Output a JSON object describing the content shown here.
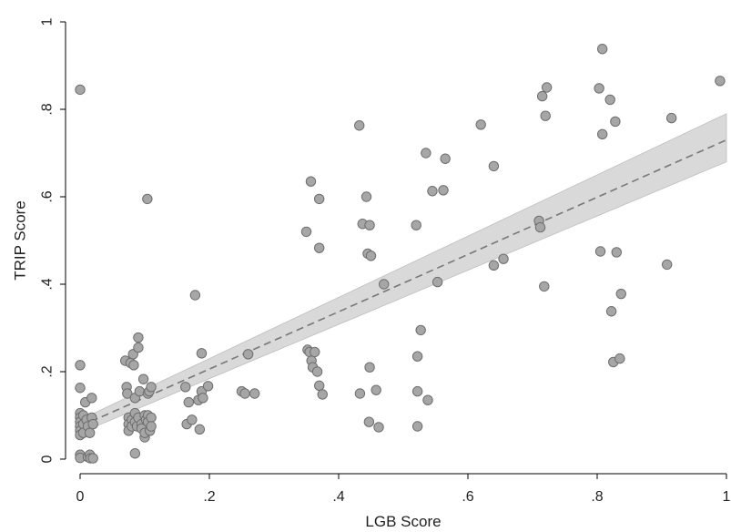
{
  "chart_data": {
    "type": "scatter",
    "title": "",
    "xlabel": "LGB Score",
    "ylabel": "TRIP Score",
    "xlim": [
      0,
      1
    ],
    "ylim": [
      0,
      1
    ],
    "xticks": [
      0,
      0.2,
      0.4,
      0.6,
      0.8,
      1
    ],
    "xtick_labels": [
      "0",
      ".2",
      ".4",
      ".6",
      ".8",
      "1"
    ],
    "yticks": [
      0,
      0.2,
      0.4,
      0.6,
      0.8,
      1
    ],
    "ytick_labels": [
      "0",
      ".2",
      ".4",
      ".6",
      ".8",
      "1"
    ],
    "grid": false,
    "legend": "none",
    "colors": {
      "point_fill": "#a6a6a6",
      "point_stroke": "#6e6e6e",
      "fit_line": "#777777",
      "ci_band": "#d9d9d9"
    },
    "fit_line": {
      "style": "dashed",
      "intercept": 0.075,
      "slope": 0.655
    },
    "confidence_band": {
      "lower_at_x0": 0.06,
      "upper_at_x0": 0.09,
      "lower_at_x1": 0.68,
      "upper_at_x1": 0.79
    },
    "points": [
      [
        0.0,
        0.845
      ],
      [
        0.0,
        0.215
      ],
      [
        0.0,
        0.163
      ],
      [
        0.0,
        0.105
      ],
      [
        0.0,
        0.095
      ],
      [
        0.0,
        0.085
      ],
      [
        0.0,
        0.075
      ],
      [
        0.0,
        0.065
      ],
      [
        0.0,
        0.055
      ],
      [
        0.0,
        0.01
      ],
      [
        0.0,
        0.003
      ],
      [
        0.005,
        0.1
      ],
      [
        0.005,
        0.08
      ],
      [
        0.005,
        0.06
      ],
      [
        0.008,
        0.13
      ],
      [
        0.01,
        0.09
      ],
      [
        0.012,
        0.075
      ],
      [
        0.012,
        0.005
      ],
      [
        0.015,
        0.06
      ],
      [
        0.015,
        0.01
      ],
      [
        0.016,
        0.002
      ],
      [
        0.018,
        0.14
      ],
      [
        0.018,
        0.095
      ],
      [
        0.02,
        0.08
      ],
      [
        0.02,
        0.002
      ],
      [
        0.07,
        0.225
      ],
      [
        0.072,
        0.165
      ],
      [
        0.073,
        0.15
      ],
      [
        0.075,
        0.095
      ],
      [
        0.075,
        0.08
      ],
      [
        0.075,
        0.065
      ],
      [
        0.078,
        0.22
      ],
      [
        0.08,
        0.09
      ],
      [
        0.08,
        0.075
      ],
      [
        0.082,
        0.24
      ],
      [
        0.083,
        0.215
      ],
      [
        0.085,
        0.14
      ],
      [
        0.085,
        0.105
      ],
      [
        0.085,
        0.085
      ],
      [
        0.085,
        0.013
      ],
      [
        0.088,
        0.075
      ],
      [
        0.09,
        0.278
      ],
      [
        0.09,
        0.255
      ],
      [
        0.09,
        0.095
      ],
      [
        0.092,
        0.155
      ],
      [
        0.095,
        0.08
      ],
      [
        0.095,
        0.07
      ],
      [
        0.098,
        0.183
      ],
      [
        0.1,
        0.1
      ],
      [
        0.1,
        0.05
      ],
      [
        0.1,
        0.06
      ],
      [
        0.102,
        0.09
      ],
      [
        0.104,
        0.595
      ],
      [
        0.105,
        0.15
      ],
      [
        0.105,
        0.1
      ],
      [
        0.105,
        0.085
      ],
      [
        0.107,
        0.155
      ],
      [
        0.108,
        0.065
      ],
      [
        0.11,
        0.165
      ],
      [
        0.11,
        0.095
      ],
      [
        0.11,
        0.075
      ],
      [
        0.163,
        0.165
      ],
      [
        0.165,
        0.08
      ],
      [
        0.168,
        0.13
      ],
      [
        0.173,
        0.09
      ],
      [
        0.178,
        0.375
      ],
      [
        0.183,
        0.135
      ],
      [
        0.185,
        0.068
      ],
      [
        0.188,
        0.242
      ],
      [
        0.188,
        0.155
      ],
      [
        0.19,
        0.14
      ],
      [
        0.198,
        0.167
      ],
      [
        0.25,
        0.155
      ],
      [
        0.255,
        0.15
      ],
      [
        0.26,
        0.24
      ],
      [
        0.27,
        0.15
      ],
      [
        0.35,
        0.52
      ],
      [
        0.352,
        0.25
      ],
      [
        0.355,
        0.245
      ],
      [
        0.357,
        0.635
      ],
      [
        0.358,
        0.225
      ],
      [
        0.36,
        0.21
      ],
      [
        0.363,
        0.245
      ],
      [
        0.367,
        0.2
      ],
      [
        0.37,
        0.483
      ],
      [
        0.37,
        0.168
      ],
      [
        0.37,
        0.595
      ],
      [
        0.375,
        0.148
      ],
      [
        0.432,
        0.763
      ],
      [
        0.433,
        0.15
      ],
      [
        0.437,
        0.538
      ],
      [
        0.443,
        0.6
      ],
      [
        0.445,
        0.47
      ],
      [
        0.447,
        0.085
      ],
      [
        0.448,
        0.535
      ],
      [
        0.448,
        0.21
      ],
      [
        0.45,
        0.465
      ],
      [
        0.458,
        0.158
      ],
      [
        0.462,
        0.073
      ],
      [
        0.47,
        0.4
      ],
      [
        0.52,
        0.535
      ],
      [
        0.522,
        0.155
      ],
      [
        0.522,
        0.235
      ],
      [
        0.522,
        0.075
      ],
      [
        0.527,
        0.295
      ],
      [
        0.535,
        0.7
      ],
      [
        0.538,
        0.135
      ],
      [
        0.545,
        0.613
      ],
      [
        0.553,
        0.405
      ],
      [
        0.562,
        0.615
      ],
      [
        0.565,
        0.687
      ],
      [
        0.62,
        0.765
      ],
      [
        0.64,
        0.67
      ],
      [
        0.64,
        0.443
      ],
      [
        0.655,
        0.458
      ],
      [
        0.71,
        0.545
      ],
      [
        0.712,
        0.53
      ],
      [
        0.715,
        0.83
      ],
      [
        0.718,
        0.395
      ],
      [
        0.72,
        0.785
      ],
      [
        0.722,
        0.85
      ],
      [
        0.803,
        0.848
      ],
      [
        0.805,
        0.475
      ],
      [
        0.808,
        0.938
      ],
      [
        0.808,
        0.743
      ],
      [
        0.82,
        0.822
      ],
      [
        0.822,
        0.338
      ],
      [
        0.825,
        0.222
      ],
      [
        0.828,
        0.772
      ],
      [
        0.83,
        0.473
      ],
      [
        0.835,
        0.23
      ],
      [
        0.837,
        0.378
      ],
      [
        0.908,
        0.445
      ],
      [
        0.915,
        0.78
      ],
      [
        0.99,
        0.865
      ]
    ]
  }
}
